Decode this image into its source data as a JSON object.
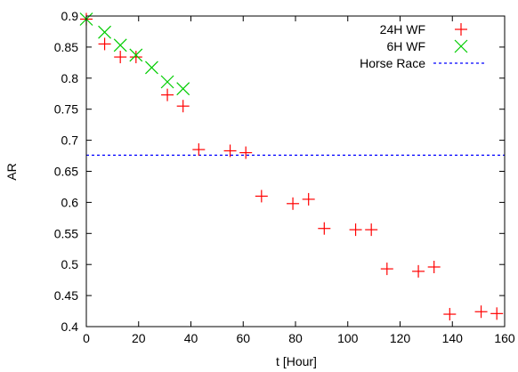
{
  "chart_data": {
    "type": "scatter",
    "title": "",
    "xlabel": "t [Hour]",
    "ylabel": "AR",
    "xlim": [
      0,
      160
    ],
    "ylim": [
      0.4,
      0.9
    ],
    "x_ticks": [
      0,
      20,
      40,
      60,
      80,
      100,
      120,
      140,
      160
    ],
    "x_tick_labels": [
      "0",
      "20",
      "40",
      "60",
      "80",
      "100",
      "120",
      "140",
      "160"
    ],
    "y_ticks": [
      0.4,
      0.45,
      0.5,
      0.55,
      0.6,
      0.65,
      0.7,
      0.75,
      0.8,
      0.85,
      0.9
    ],
    "y_tick_labels": [
      "0.4",
      "0.45",
      "0.5",
      "0.55",
      "0.6",
      "0.65",
      "0.7",
      "0.75",
      "0.8",
      "0.85",
      "0.9"
    ],
    "grid": false,
    "legend_position": "top-right",
    "series": [
      {
        "name": "24H WF",
        "marker": "plus",
        "color": "#ff0000",
        "x": [
          0,
          7,
          13,
          19,
          31,
          37,
          43,
          55,
          61,
          67,
          79,
          85,
          91,
          103,
          109,
          115,
          127,
          133,
          139,
          151,
          157
        ],
        "y": [
          0.895,
          0.855,
          0.834,
          0.834,
          0.773,
          0.755,
          0.685,
          0.683,
          0.68,
          0.61,
          0.598,
          0.605,
          0.558,
          0.556,
          0.556,
          0.493,
          0.489,
          0.496,
          0.42,
          0.424,
          0.421
        ]
      },
      {
        "name": "6H WF",
        "marker": "cross",
        "color": "#00cc00",
        "x": [
          0,
          7,
          13,
          19,
          25,
          31,
          37
        ],
        "y": [
          0.895,
          0.874,
          0.853,
          0.837,
          0.817,
          0.794,
          0.783
        ]
      },
      {
        "name": "Horse Race",
        "marker": "dashed-line",
        "color": "#0000ff",
        "x": [
          0,
          160
        ],
        "y": [
          0.676,
          0.676
        ]
      }
    ]
  }
}
